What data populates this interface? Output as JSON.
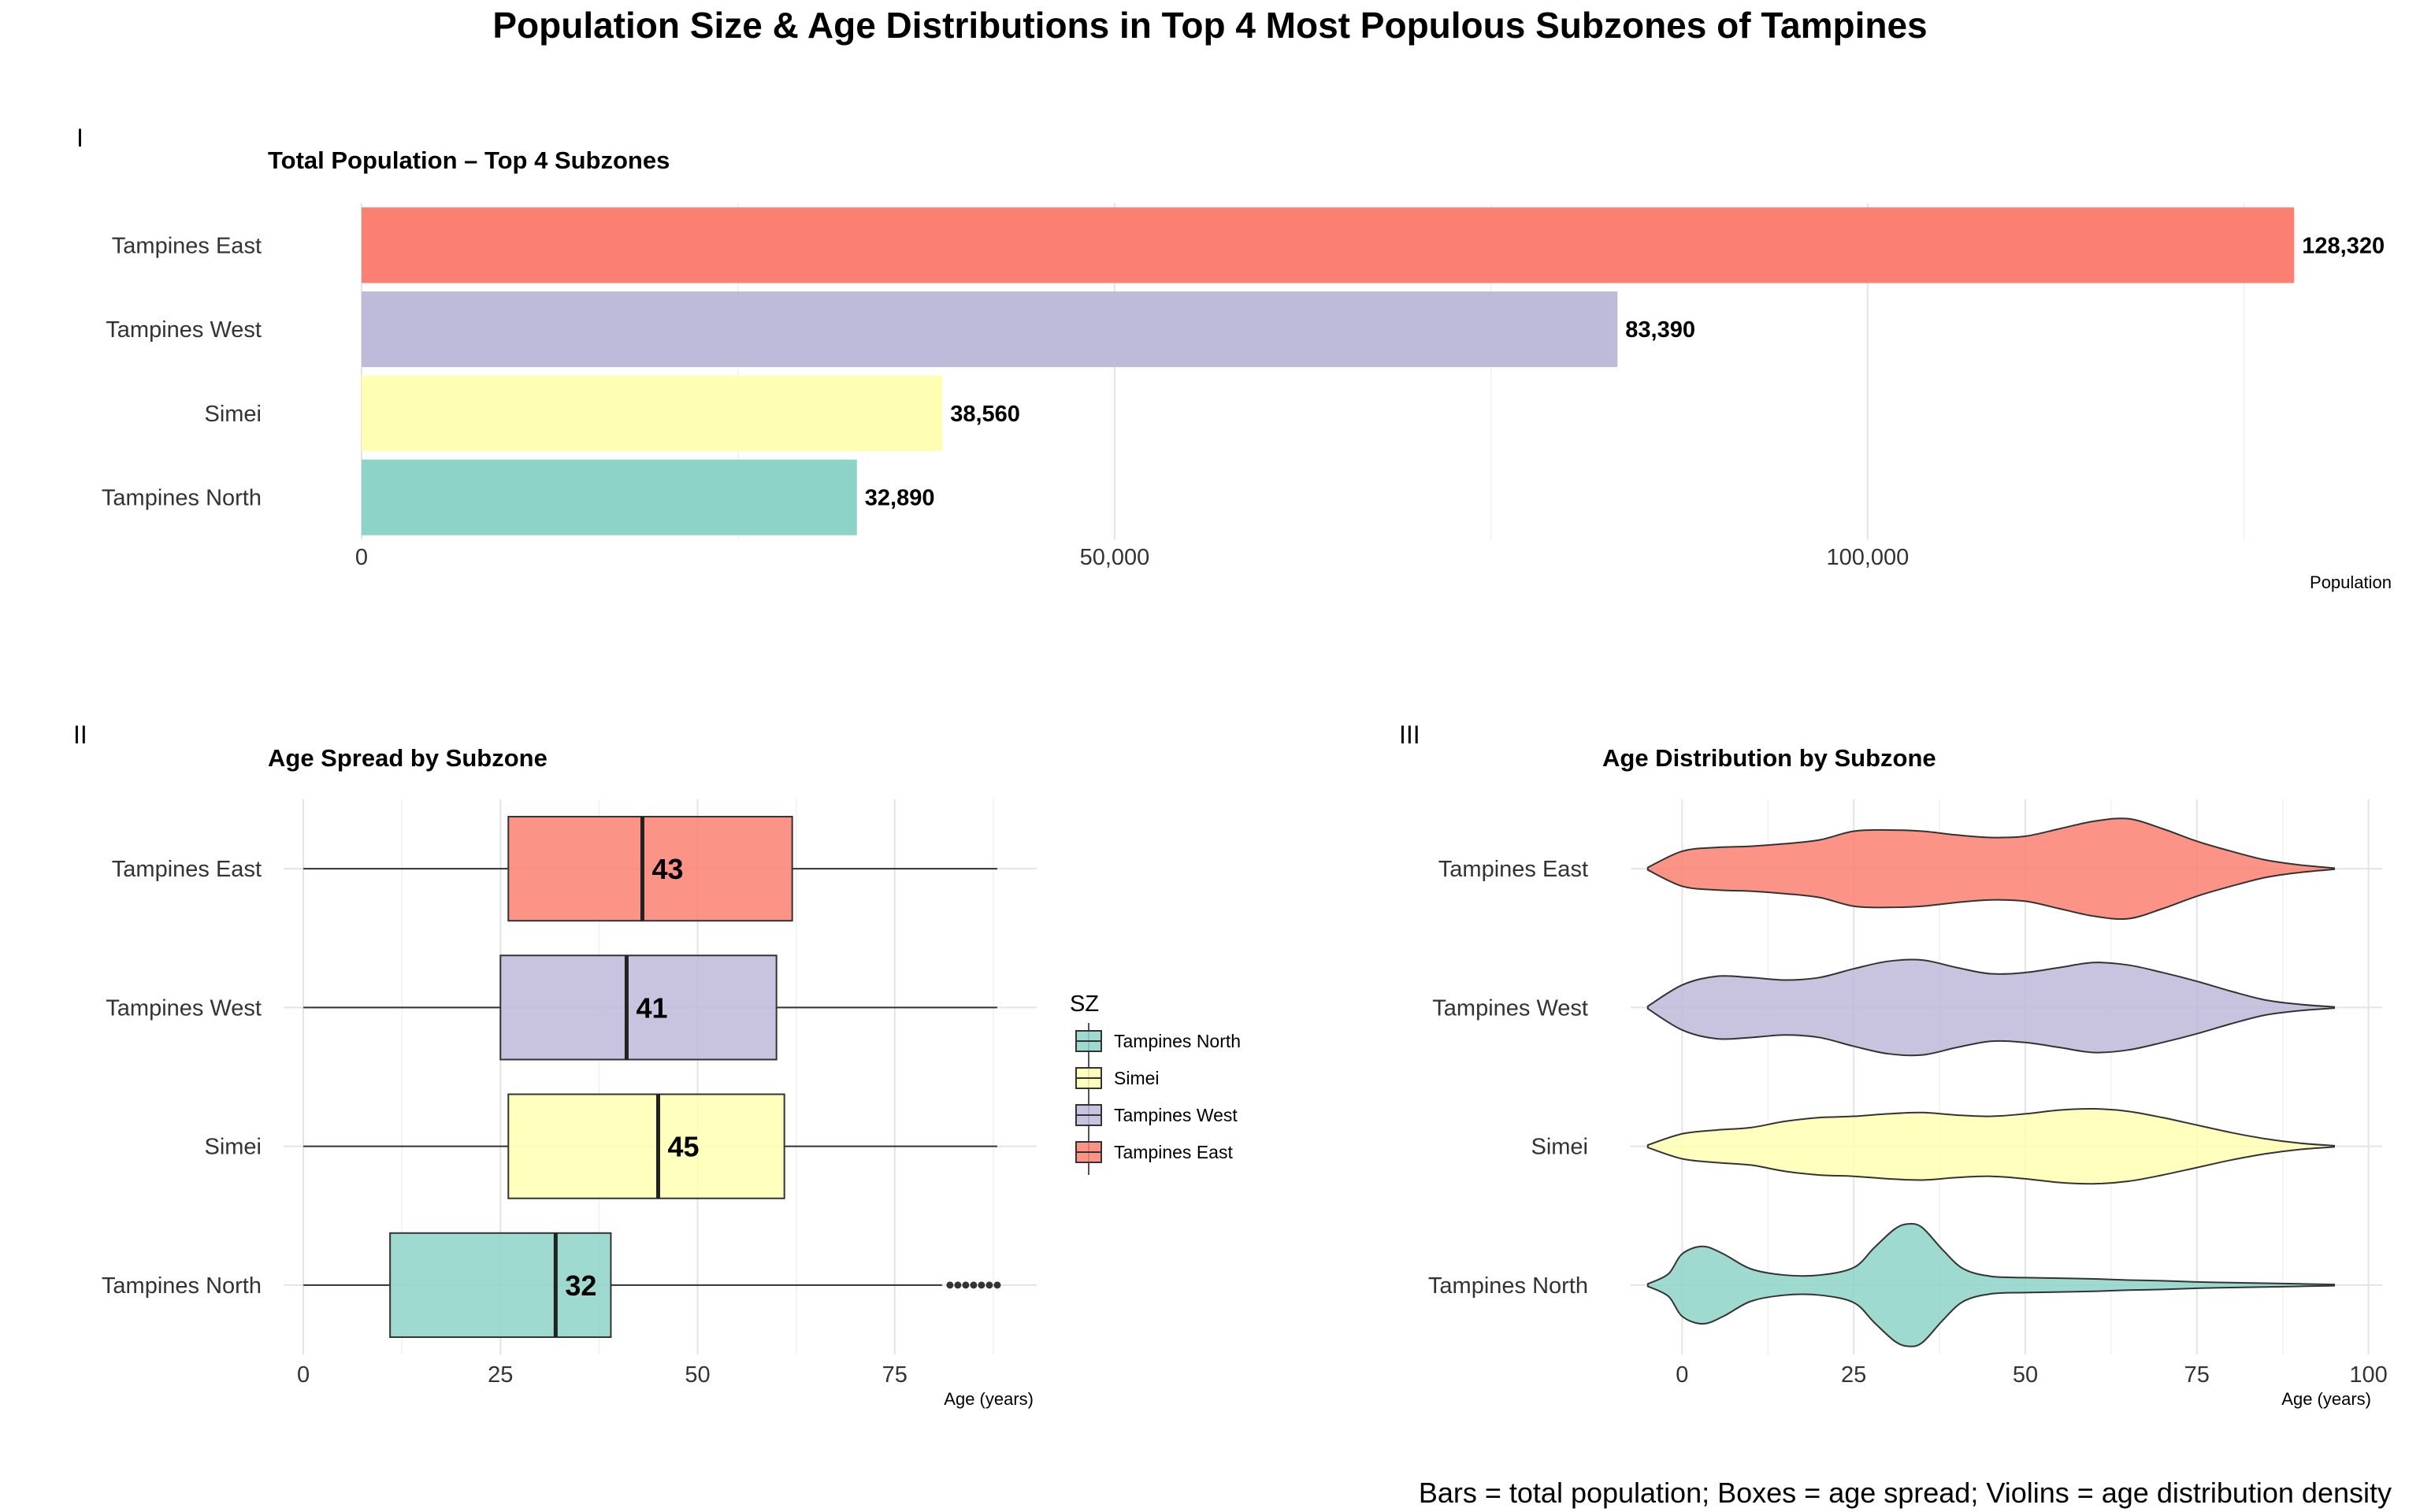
{
  "figure": {
    "title": "Population Size & Age Distributions in Top 4 Most Populous Subzones of Tampines",
    "caption": "Bars = total population; Boxes = age spread; Violins = age distribution density"
  },
  "colors": {
    "Tampines North": "#8dd3c7",
    "Simei": "#ffffb3",
    "Tampines West": "#bebada",
    "Tampines East": "#fb8072"
  },
  "legend": {
    "title": "SZ",
    "entries": [
      "Tampines North",
      "Simei",
      "Tampines West",
      "Tampines East"
    ]
  },
  "chart_data": [
    {
      "panel": "I",
      "type": "bar",
      "orientation": "horizontal",
      "title": "Total Population – Top 4 Subzones",
      "xlabel": "Population",
      "ylabel": "",
      "categories": [
        "Tampines East",
        "Tampines West",
        "Simei",
        "Tampines North"
      ],
      "values": [
        128320,
        83390,
        38560,
        32890
      ],
      "value_labels": [
        "128,320",
        "83,390",
        "38,560",
        "32,890"
      ],
      "xlim": [
        0,
        135000
      ],
      "xticks": [
        0,
        50000,
        100000
      ],
      "xtick_labels": [
        "0",
        "50,000",
        "100,000"
      ],
      "grid": true
    },
    {
      "panel": "II",
      "type": "box",
      "orientation": "horizontal",
      "title": "Age Spread by Subzone",
      "xlabel": "Age (years)",
      "ylabel": "",
      "categories": [
        "Tampines East",
        "Tampines West",
        "Simei",
        "Tampines North"
      ],
      "stats": [
        {
          "name": "Tampines East",
          "min": 0,
          "q1": 26,
          "median": 43,
          "q3": 62,
          "max": 88,
          "median_label": "43",
          "outliers": []
        },
        {
          "name": "Tampines West",
          "min": 0,
          "q1": 25,
          "median": 41,
          "q3": 60,
          "max": 88,
          "median_label": "41",
          "outliers": []
        },
        {
          "name": "Simei",
          "min": 0,
          "q1": 26,
          "median": 45,
          "q3": 61,
          "max": 88,
          "median_label": "45",
          "outliers": []
        },
        {
          "name": "Tampines North",
          "min": 0,
          "q1": 11,
          "median": 32,
          "q3": 39,
          "max": 81,
          "median_label": "32",
          "outliers": [
            82,
            83,
            84,
            85,
            86,
            87,
            88
          ]
        }
      ],
      "xlim": [
        -2.5,
        93
      ],
      "xticks": [
        0,
        25,
        50,
        75
      ],
      "xtick_labels": [
        "0",
        "25",
        "50",
        "75"
      ],
      "grid": true,
      "legend_position": "right"
    },
    {
      "panel": "III",
      "type": "violin",
      "orientation": "horizontal",
      "title": "Age Distribution by Subzone",
      "xlabel": "Age (years)",
      "ylabel": "",
      "categories": [
        "Tampines East",
        "Tampines West",
        "Simei",
        "Tampines North"
      ],
      "density": [
        {
          "name": "Tampines East",
          "age": [
            -5,
            0,
            5,
            10,
            15,
            20,
            25,
            30,
            35,
            40,
            45,
            50,
            55,
            60,
            65,
            70,
            75,
            80,
            85,
            90,
            95
          ],
          "halfwidth": [
            0.02,
            0.28,
            0.34,
            0.36,
            0.4,
            0.46,
            0.6,
            0.62,
            0.6,
            0.54,
            0.5,
            0.52,
            0.64,
            0.76,
            0.8,
            0.64,
            0.44,
            0.28,
            0.14,
            0.06,
            0.01
          ]
        },
        {
          "name": "Tampines West",
          "age": [
            -5,
            0,
            5,
            10,
            15,
            20,
            25,
            30,
            35,
            40,
            45,
            50,
            55,
            60,
            65,
            70,
            75,
            80,
            85,
            90,
            95
          ],
          "halfwidth": [
            0.02,
            0.36,
            0.5,
            0.48,
            0.44,
            0.48,
            0.62,
            0.74,
            0.76,
            0.64,
            0.54,
            0.56,
            0.64,
            0.72,
            0.68,
            0.56,
            0.42,
            0.26,
            0.12,
            0.05,
            0.01
          ]
        },
        {
          "name": "Simei",
          "age": [
            -5,
            0,
            5,
            10,
            15,
            20,
            25,
            30,
            35,
            40,
            45,
            50,
            55,
            60,
            65,
            70,
            75,
            80,
            85,
            90,
            95
          ],
          "halfwidth": [
            0.02,
            0.2,
            0.26,
            0.3,
            0.4,
            0.46,
            0.48,
            0.52,
            0.54,
            0.5,
            0.48,
            0.52,
            0.58,
            0.6,
            0.56,
            0.46,
            0.34,
            0.22,
            0.12,
            0.05,
            0.01
          ]
        },
        {
          "name": "Tampines North",
          "age": [
            -5,
            -2,
            0,
            3,
            6,
            10,
            15,
            20,
            25,
            28,
            31,
            33,
            35,
            38,
            41,
            45,
            50,
            55,
            60,
            65,
            70,
            75,
            80,
            85,
            90,
            95
          ],
          "halfwidth": [
            0.02,
            0.18,
            0.5,
            0.62,
            0.5,
            0.26,
            0.16,
            0.16,
            0.28,
            0.6,
            0.9,
            0.98,
            0.92,
            0.56,
            0.26,
            0.14,
            0.12,
            0.11,
            0.1,
            0.08,
            0.07,
            0.05,
            0.04,
            0.03,
            0.02,
            0.01
          ]
        }
      ],
      "xlim": [
        -7.5,
        102
      ],
      "xticks": [
        0,
        25,
        50,
        75,
        100
      ],
      "xtick_labels": [
        "0",
        "25",
        "50",
        "75",
        "100"
      ],
      "grid": true
    }
  ]
}
